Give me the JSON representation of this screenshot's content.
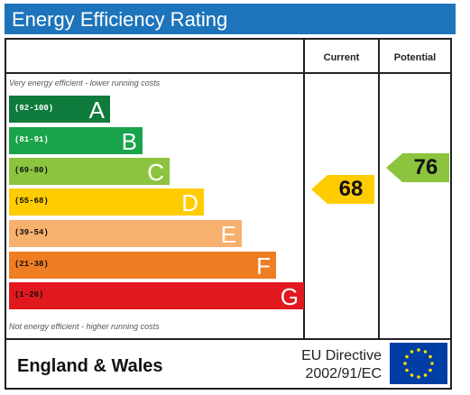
{
  "title": "Energy Efficiency Rating",
  "columns": {
    "current": "Current",
    "potential": "Potential"
  },
  "top_note": "Very energy efficient - lower running costs",
  "bottom_note": "Not energy efficient - higher running costs",
  "bands": [
    {
      "range": "(92-100)",
      "letter": "A",
      "color": "#0e7b3d",
      "range_color": "#ffffff"
    },
    {
      "range": "(81-91)",
      "letter": "B",
      "color": "#19a44b",
      "range_color": "#ffffff"
    },
    {
      "range": "(69-80)",
      "letter": "C",
      "color": "#8cc43f",
      "range_color": "#111111"
    },
    {
      "range": "(55-68)",
      "letter": "D",
      "color": "#ffcc00",
      "range_color": "#111111"
    },
    {
      "range": "(39-54)",
      "letter": "E",
      "color": "#f7b06d",
      "range_color": "#111111"
    },
    {
      "range": "(21-38)",
      "letter": "F",
      "color": "#ef7d22",
      "range_color": "#111111"
    },
    {
      "range": "(1-20)",
      "letter": "G",
      "color": "#e1191f",
      "range_color": "#111111"
    }
  ],
  "current": {
    "value": "68",
    "color": "#ffcc00"
  },
  "potential": {
    "value": "76",
    "color": "#8cc43f"
  },
  "footer": {
    "region": "England & Wales",
    "directive_line1": "EU Directive",
    "directive_line2": "2002/91/EC"
  },
  "eu_flag": {
    "icon": "eu-flag-icon",
    "background": "#003da5",
    "stars": "#ffdd00"
  }
}
